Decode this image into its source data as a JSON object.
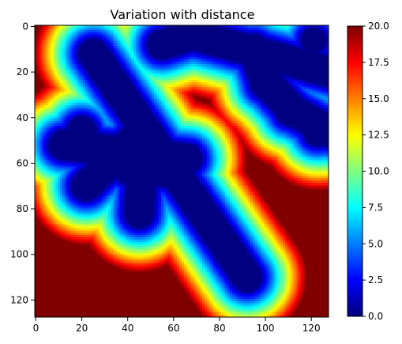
{
  "chart_data": {
    "type": "heatmap",
    "title": "Variation with distance",
    "xlabel": "",
    "ylabel": "",
    "xlim": [
      0,
      127
    ],
    "ylim": [
      127,
      0
    ],
    "x_ticks": [
      "0",
      "20",
      "40",
      "60",
      "80",
      "100",
      "120"
    ],
    "y_ticks": [
      "0",
      "20",
      "40",
      "60",
      "80",
      "100",
      "120"
    ],
    "colormap": "jet",
    "colorbar": {
      "vmin": 0.0,
      "vmax": 20.0,
      "ticks": [
        "0.0",
        "2.5",
        "5.0",
        "7.5",
        "10.0",
        "12.5",
        "15.0",
        "17.5",
        "20.0"
      ]
    },
    "grid": false,
    "description_of_values": "distance to nearest point of a cross-shaped set, clipped at 20",
    "segments": [
      [
        25,
        12,
        92,
        110
      ],
      [
        12,
        52,
        66,
        58
      ],
      [
        47,
        45,
        41,
        63
      ],
      [
        47,
        45,
        45,
        82
      ],
      [
        47,
        45,
        22,
        70
      ],
      [
        66,
        3,
        128,
        20
      ],
      [
        67,
        4,
        55,
        8
      ],
      [
        95,
        10,
        100,
        24
      ],
      [
        100,
        24,
        112,
        37
      ],
      [
        112,
        37,
        128,
        46
      ]
    ],
    "blobs": [
      [
        20,
        46,
        6
      ],
      [
        22,
        70,
        6
      ],
      [
        45,
        82,
        5
      ],
      [
        56,
        63,
        7
      ],
      [
        100,
        25,
        6
      ],
      [
        111,
        37,
        6
      ],
      [
        123,
        46,
        6
      ],
      [
        121,
        6,
        5
      ],
      [
        92,
        110,
        5
      ]
    ]
  }
}
